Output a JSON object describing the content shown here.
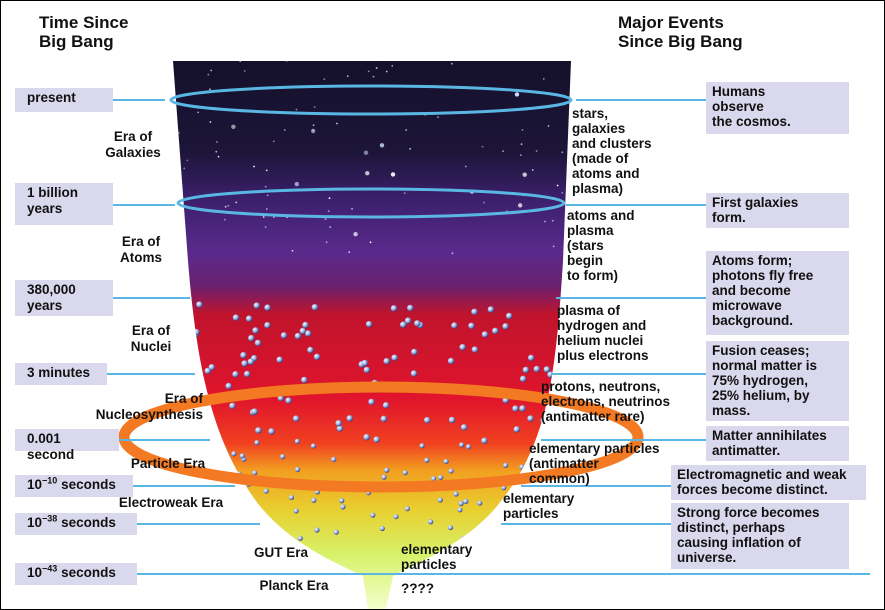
{
  "headers": {
    "left": "Time Since\nBig Bang",
    "right": "Major Events\nSince Big Bang"
  },
  "time_markers": [
    {
      "label": "present"
    },
    {
      "label": "1 billion years"
    },
    {
      "label": "380,000 years"
    },
    {
      "label": "3 minutes"
    },
    {
      "label": "0.001 second"
    },
    {
      "base": "10",
      "exp": "−10",
      "unit": "seconds"
    },
    {
      "base": "10",
      "exp": "−38",
      "unit": "seconds"
    },
    {
      "base": "10",
      "exp": "−43",
      "unit": "seconds"
    }
  ],
  "eras": [
    "Era of\nGalaxies",
    "Era of\nAtoms",
    "Era of\nNuclei",
    "Era of\nNucleosynthesis",
    "Particle Era",
    "Electroweak Era",
    "GUT Era",
    "Planck Era"
  ],
  "contents": [
    "stars,\ngalaxies\nand clusters\n(made of\natoms and\nplasma)",
    "atoms and\nplasma\n(stars\nbegin\nto form)",
    "plasma of\nhydrogen and\nhelium nuclei\nplus electrons",
    "protons, neutrons,\nelectrons, neutrinos\n(antimatter rare)",
    "elementary particles\n(antimatter\ncommon)",
    "elementary\nparticles",
    "elementary\nparticles",
    "????"
  ],
  "events": [
    "Humans\nobserve\nthe cosmos.",
    "First galaxies\nform.",
    "Atoms form;\nphotons fly free\nand become\nmicrowave\nbackground.",
    "Fusion ceases;\nnormal matter is\n75% hydrogen,\n25% helium,  by\nmass.",
    "Matter annihilates\nantimatter.",
    "Electromagnetic and weak\nforces become distinct.",
    "Strong force becomes\ndistinct, perhaps\ncausing inflation of\nuniverse."
  ],
  "colors": {
    "box_fill": "#d9d8ec",
    "timeline": "#5ab7e3",
    "highlight_ellipse": "#f37a22",
    "space": "#15102a",
    "atoms_era": "#5a2a8c",
    "nuclei_era": "#d8162a",
    "particle_era": "#f2c020",
    "early_era": "#d7f26a"
  }
}
